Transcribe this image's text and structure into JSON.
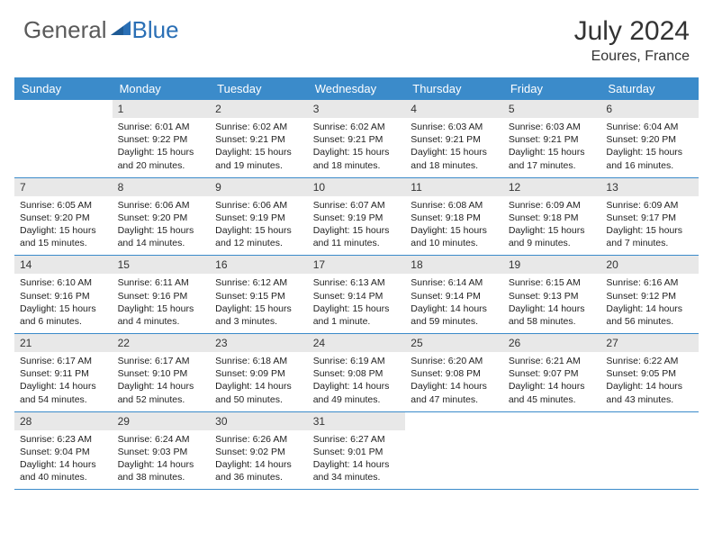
{
  "logo": {
    "part1": "General",
    "part2": "Blue"
  },
  "title": "July 2024",
  "location": "Eoures, France",
  "weekdays": [
    "Sunday",
    "Monday",
    "Tuesday",
    "Wednesday",
    "Thursday",
    "Friday",
    "Saturday"
  ],
  "colors": {
    "header_bar": "#3b8bca",
    "day_num_bg": "#e8e8e8",
    "logo_gray": "#5a5a5a",
    "logo_blue": "#2a6fb5",
    "white": "#ffffff"
  },
  "weeks": [
    [
      {
        "n": "",
        "sunrise": "",
        "sunset": "",
        "daylight1": "",
        "daylight2": ""
      },
      {
        "n": "1",
        "sunrise": "Sunrise: 6:01 AM",
        "sunset": "Sunset: 9:22 PM",
        "daylight1": "Daylight: 15 hours",
        "daylight2": "and 20 minutes."
      },
      {
        "n": "2",
        "sunrise": "Sunrise: 6:02 AM",
        "sunset": "Sunset: 9:21 PM",
        "daylight1": "Daylight: 15 hours",
        "daylight2": "and 19 minutes."
      },
      {
        "n": "3",
        "sunrise": "Sunrise: 6:02 AM",
        "sunset": "Sunset: 9:21 PM",
        "daylight1": "Daylight: 15 hours",
        "daylight2": "and 18 minutes."
      },
      {
        "n": "4",
        "sunrise": "Sunrise: 6:03 AM",
        "sunset": "Sunset: 9:21 PM",
        "daylight1": "Daylight: 15 hours",
        "daylight2": "and 18 minutes."
      },
      {
        "n": "5",
        "sunrise": "Sunrise: 6:03 AM",
        "sunset": "Sunset: 9:21 PM",
        "daylight1": "Daylight: 15 hours",
        "daylight2": "and 17 minutes."
      },
      {
        "n": "6",
        "sunrise": "Sunrise: 6:04 AM",
        "sunset": "Sunset: 9:20 PM",
        "daylight1": "Daylight: 15 hours",
        "daylight2": "and 16 minutes."
      }
    ],
    [
      {
        "n": "7",
        "sunrise": "Sunrise: 6:05 AM",
        "sunset": "Sunset: 9:20 PM",
        "daylight1": "Daylight: 15 hours",
        "daylight2": "and 15 minutes."
      },
      {
        "n": "8",
        "sunrise": "Sunrise: 6:06 AM",
        "sunset": "Sunset: 9:20 PM",
        "daylight1": "Daylight: 15 hours",
        "daylight2": "and 14 minutes."
      },
      {
        "n": "9",
        "sunrise": "Sunrise: 6:06 AM",
        "sunset": "Sunset: 9:19 PM",
        "daylight1": "Daylight: 15 hours",
        "daylight2": "and 12 minutes."
      },
      {
        "n": "10",
        "sunrise": "Sunrise: 6:07 AM",
        "sunset": "Sunset: 9:19 PM",
        "daylight1": "Daylight: 15 hours",
        "daylight2": "and 11 minutes."
      },
      {
        "n": "11",
        "sunrise": "Sunrise: 6:08 AM",
        "sunset": "Sunset: 9:18 PM",
        "daylight1": "Daylight: 15 hours",
        "daylight2": "and 10 minutes."
      },
      {
        "n": "12",
        "sunrise": "Sunrise: 6:09 AM",
        "sunset": "Sunset: 9:18 PM",
        "daylight1": "Daylight: 15 hours",
        "daylight2": "and 9 minutes."
      },
      {
        "n": "13",
        "sunrise": "Sunrise: 6:09 AM",
        "sunset": "Sunset: 9:17 PM",
        "daylight1": "Daylight: 15 hours",
        "daylight2": "and 7 minutes."
      }
    ],
    [
      {
        "n": "14",
        "sunrise": "Sunrise: 6:10 AM",
        "sunset": "Sunset: 9:16 PM",
        "daylight1": "Daylight: 15 hours",
        "daylight2": "and 6 minutes."
      },
      {
        "n": "15",
        "sunrise": "Sunrise: 6:11 AM",
        "sunset": "Sunset: 9:16 PM",
        "daylight1": "Daylight: 15 hours",
        "daylight2": "and 4 minutes."
      },
      {
        "n": "16",
        "sunrise": "Sunrise: 6:12 AM",
        "sunset": "Sunset: 9:15 PM",
        "daylight1": "Daylight: 15 hours",
        "daylight2": "and 3 minutes."
      },
      {
        "n": "17",
        "sunrise": "Sunrise: 6:13 AM",
        "sunset": "Sunset: 9:14 PM",
        "daylight1": "Daylight: 15 hours",
        "daylight2": "and 1 minute."
      },
      {
        "n": "18",
        "sunrise": "Sunrise: 6:14 AM",
        "sunset": "Sunset: 9:14 PM",
        "daylight1": "Daylight: 14 hours",
        "daylight2": "and 59 minutes."
      },
      {
        "n": "19",
        "sunrise": "Sunrise: 6:15 AM",
        "sunset": "Sunset: 9:13 PM",
        "daylight1": "Daylight: 14 hours",
        "daylight2": "and 58 minutes."
      },
      {
        "n": "20",
        "sunrise": "Sunrise: 6:16 AM",
        "sunset": "Sunset: 9:12 PM",
        "daylight1": "Daylight: 14 hours",
        "daylight2": "and 56 minutes."
      }
    ],
    [
      {
        "n": "21",
        "sunrise": "Sunrise: 6:17 AM",
        "sunset": "Sunset: 9:11 PM",
        "daylight1": "Daylight: 14 hours",
        "daylight2": "and 54 minutes."
      },
      {
        "n": "22",
        "sunrise": "Sunrise: 6:17 AM",
        "sunset": "Sunset: 9:10 PM",
        "daylight1": "Daylight: 14 hours",
        "daylight2": "and 52 minutes."
      },
      {
        "n": "23",
        "sunrise": "Sunrise: 6:18 AM",
        "sunset": "Sunset: 9:09 PM",
        "daylight1": "Daylight: 14 hours",
        "daylight2": "and 50 minutes."
      },
      {
        "n": "24",
        "sunrise": "Sunrise: 6:19 AM",
        "sunset": "Sunset: 9:08 PM",
        "daylight1": "Daylight: 14 hours",
        "daylight2": "and 49 minutes."
      },
      {
        "n": "25",
        "sunrise": "Sunrise: 6:20 AM",
        "sunset": "Sunset: 9:08 PM",
        "daylight1": "Daylight: 14 hours",
        "daylight2": "and 47 minutes."
      },
      {
        "n": "26",
        "sunrise": "Sunrise: 6:21 AM",
        "sunset": "Sunset: 9:07 PM",
        "daylight1": "Daylight: 14 hours",
        "daylight2": "and 45 minutes."
      },
      {
        "n": "27",
        "sunrise": "Sunrise: 6:22 AM",
        "sunset": "Sunset: 9:05 PM",
        "daylight1": "Daylight: 14 hours",
        "daylight2": "and 43 minutes."
      }
    ],
    [
      {
        "n": "28",
        "sunrise": "Sunrise: 6:23 AM",
        "sunset": "Sunset: 9:04 PM",
        "daylight1": "Daylight: 14 hours",
        "daylight2": "and 40 minutes."
      },
      {
        "n": "29",
        "sunrise": "Sunrise: 6:24 AM",
        "sunset": "Sunset: 9:03 PM",
        "daylight1": "Daylight: 14 hours",
        "daylight2": "and 38 minutes."
      },
      {
        "n": "30",
        "sunrise": "Sunrise: 6:26 AM",
        "sunset": "Sunset: 9:02 PM",
        "daylight1": "Daylight: 14 hours",
        "daylight2": "and 36 minutes."
      },
      {
        "n": "31",
        "sunrise": "Sunrise: 6:27 AM",
        "sunset": "Sunset: 9:01 PM",
        "daylight1": "Daylight: 14 hours",
        "daylight2": "and 34 minutes."
      },
      {
        "n": "",
        "sunrise": "",
        "sunset": "",
        "daylight1": "",
        "daylight2": ""
      },
      {
        "n": "",
        "sunrise": "",
        "sunset": "",
        "daylight1": "",
        "daylight2": ""
      },
      {
        "n": "",
        "sunrise": "",
        "sunset": "",
        "daylight1": "",
        "daylight2": ""
      }
    ]
  ]
}
